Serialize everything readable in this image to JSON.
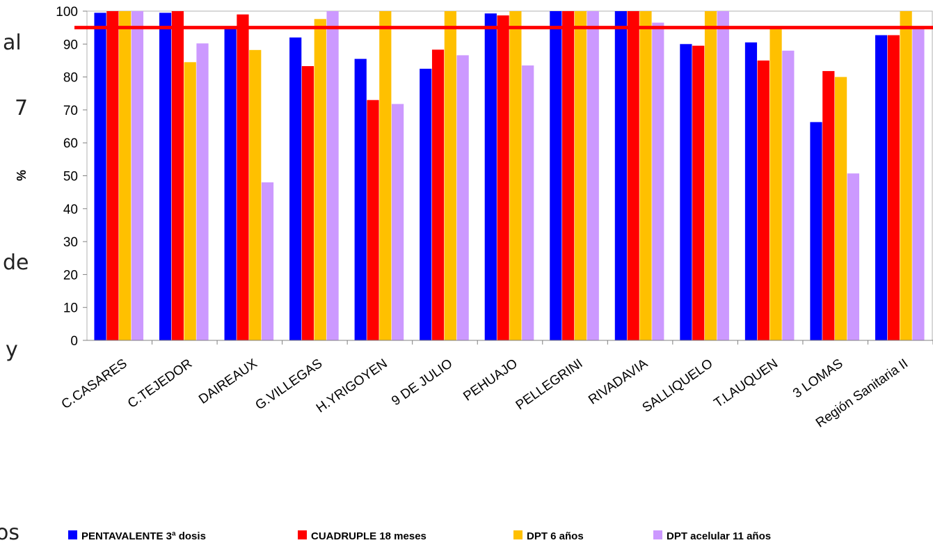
{
  "side_text": [
    "al",
    "7",
    "de",
    "y",
    "os"
  ],
  "chart_data": {
    "type": "bar",
    "title": "",
    "xlabel": "",
    "ylabel": "%",
    "ylim": [
      0,
      100
    ],
    "yticks": [
      0,
      10,
      20,
      30,
      40,
      50,
      60,
      70,
      80,
      90,
      100
    ],
    "reference_line": {
      "value": 95,
      "color": "#ff0000"
    },
    "legend_position": "bottom",
    "categories": [
      "C.CASARES",
      "C.TEJEDOR",
      "DAIREAUX",
      "G.VILLEGAS",
      "H.YRIGOYEN",
      "9 DE JULIO",
      "PEHUAJO",
      "PELLEGRINI",
      "RIVADAVIA",
      "SALLIQUELO",
      "T.LAUQUEN",
      "3 LOMAS",
      "Región Sanitaria II"
    ],
    "series": [
      {
        "name": "PENTAVALENTE 3ª dosis",
        "color": "#0000ff",
        "values": [
          99.5,
          99.5,
          95,
          92,
          85.5,
          82.5,
          99.3,
          100,
          100,
          90,
          90.5,
          66.3,
          92.7
        ]
      },
      {
        "name": "CUADRUPLE 18 meses",
        "color": "#ff0000",
        "values": [
          100,
          100,
          99,
          83.3,
          73,
          88.3,
          98.7,
          100,
          100,
          89.5,
          85,
          81.8,
          92.7
        ]
      },
      {
        "name": "DPT 6 años",
        "color": "#ffc000",
        "values": [
          100,
          84.5,
          88.2,
          97.6,
          100,
          100,
          100,
          100,
          100,
          100,
          95,
          80,
          100
        ]
      },
      {
        "name": "DPT acelular 11 años",
        "color": "#cc99ff",
        "values": [
          100,
          90.2,
          48,
          100,
          71.8,
          86.6,
          83.5,
          100,
          96.5,
          100,
          88,
          50.7,
          95
        ]
      }
    ]
  }
}
